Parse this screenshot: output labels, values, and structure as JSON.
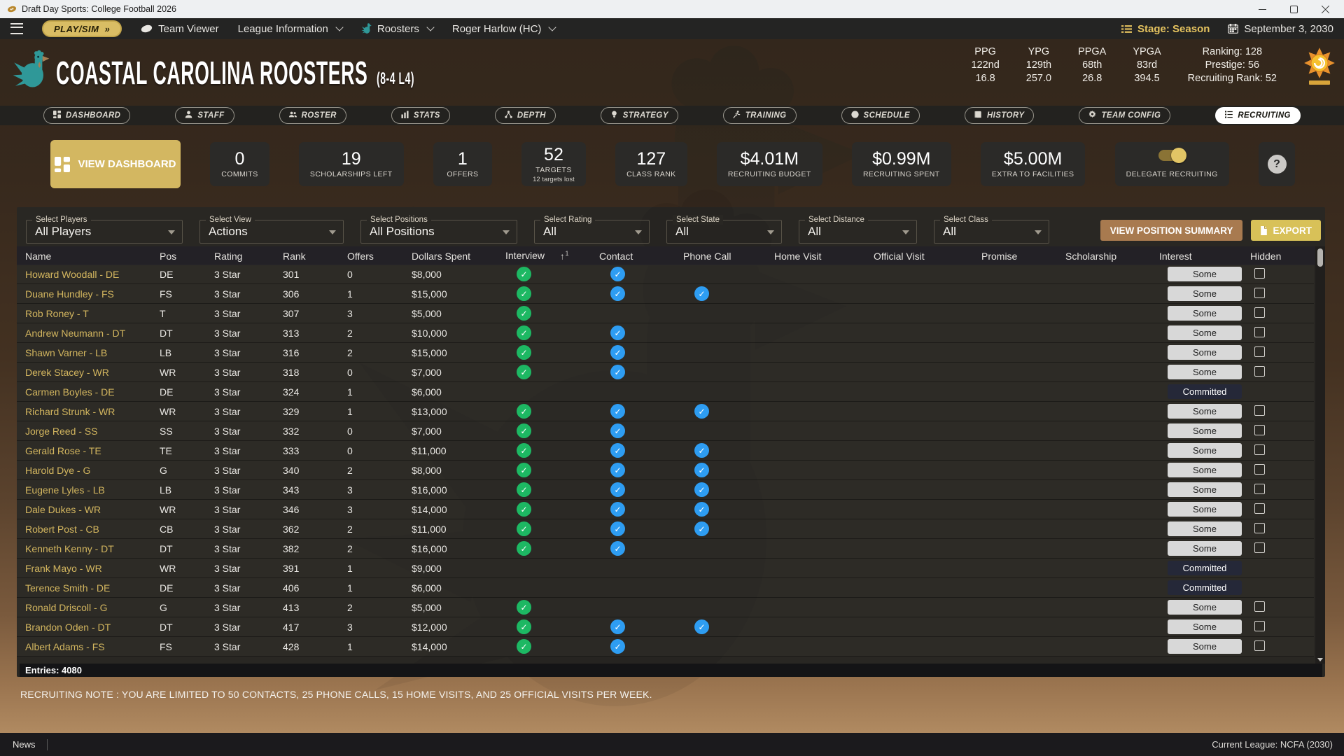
{
  "window": {
    "title": "Draft Day Sports: College Football 2026"
  },
  "navbar": {
    "play_sim": "PLAY/SIM",
    "play_sim_arrow": "»",
    "team_viewer": "Team Viewer",
    "league_information": "League Information",
    "roosters": "Roosters",
    "coach": "Roger Harlow (HC)",
    "stage": "Stage: Season",
    "date": "September 3, 2030"
  },
  "team": {
    "name": "COASTAL CAROLINA ROOSTERS",
    "record": "(8-4 L4)",
    "stats": [
      {
        "label": "PPG",
        "rank": "122nd",
        "value": "16.8"
      },
      {
        "label": "YPG",
        "rank": "129th",
        "value": "257.0"
      },
      {
        "label": "PPGA",
        "rank": "68th",
        "value": "26.8"
      },
      {
        "label": "YPGA",
        "rank": "83rd",
        "value": "394.5"
      }
    ],
    "summary": [
      "Ranking: 128",
      "Prestige: 56",
      "Recruiting Rank: 52"
    ]
  },
  "tabs": [
    {
      "label": "DASHBOARD",
      "icon": "dashboard-icon",
      "active": false
    },
    {
      "label": "STAFF",
      "icon": "staff-icon",
      "active": false
    },
    {
      "label": "ROSTER",
      "icon": "roster-icon",
      "active": false
    },
    {
      "label": "STATS",
      "icon": "stats-icon",
      "active": false
    },
    {
      "label": "DEPTH",
      "icon": "depth-icon",
      "active": false
    },
    {
      "label": "STRATEGY",
      "icon": "strategy-icon",
      "active": false
    },
    {
      "label": "TRAINING",
      "icon": "training-icon",
      "active": false
    },
    {
      "label": "SCHEDULE",
      "icon": "schedule-icon",
      "active": false
    },
    {
      "label": "HISTORY",
      "icon": "history-icon",
      "active": false
    },
    {
      "label": "TEAM CONFIG",
      "icon": "team-config-icon",
      "active": false
    },
    {
      "label": "RECRUITING",
      "icon": "recruiting-icon",
      "active": true
    }
  ],
  "cards": {
    "view_dashboard": "VIEW DASHBOARD",
    "stats": [
      {
        "value": "0",
        "label": "COMMITS"
      },
      {
        "value": "19",
        "label": "SCHOLARSHIPS LEFT"
      },
      {
        "value": "1",
        "label": "OFFERS"
      },
      {
        "value": "52",
        "label": "TARGETS",
        "sub": "12 targets lost"
      },
      {
        "value": "127",
        "label": "CLASS RANK"
      },
      {
        "value": "$4.01M",
        "label": "RECRUITING BUDGET"
      },
      {
        "value": "$0.99M",
        "label": "RECRUITING SPENT"
      },
      {
        "value": "$5.00M",
        "label": "EXTRA TO FACILITIES"
      }
    ],
    "delegate": {
      "label": "DELEGATE RECRUITING",
      "on": true
    },
    "help": "?"
  },
  "filters": [
    {
      "label": "Select Players",
      "value": "All Players"
    },
    {
      "label": "Select View",
      "value": "Actions"
    },
    {
      "label": "Select Positions",
      "value": "All Positions"
    },
    {
      "label": "Select Rating",
      "value": "All"
    },
    {
      "label": "Select State",
      "value": "All"
    },
    {
      "label": "Select Distance",
      "value": "All"
    },
    {
      "label": "Select Class",
      "value": "All"
    }
  ],
  "actions": {
    "position_summary": "VIEW POSITION SUMMARY",
    "export": "EXPORT"
  },
  "table": {
    "columns": [
      "Name",
      "Pos",
      "Rating",
      "Rank",
      "Offers",
      "Dollars Spent",
      "Interview",
      "Contact",
      "Phone Call",
      "Home Visit",
      "Official Visit",
      "Promise",
      "Scholarship",
      "Interest",
      "Hidden"
    ],
    "sort": {
      "column": "Interview",
      "direction": "asc",
      "order": "1"
    },
    "rows": [
      {
        "name": "Howard Woodall - DE",
        "pos": "DE",
        "rating": "3 Star",
        "rank": "301",
        "offers": "0",
        "dollars": "$8,000",
        "interview": true,
        "contact": true,
        "phone": false,
        "interest": "Some",
        "hidden_checkbox": true
      },
      {
        "name": "Duane Hundley - FS",
        "pos": "FS",
        "rating": "3 Star",
        "rank": "306",
        "offers": "1",
        "dollars": "$15,000",
        "interview": true,
        "contact": true,
        "phone": true,
        "interest": "Some",
        "hidden_checkbox": true
      },
      {
        "name": "Rob Roney - T",
        "pos": "T",
        "rating": "3 Star",
        "rank": "307",
        "offers": "3",
        "dollars": "$5,000",
        "interview": true,
        "contact": false,
        "phone": false,
        "interest": "Some",
        "hidden_checkbox": true
      },
      {
        "name": "Andrew Neumann - DT",
        "pos": "DT",
        "rating": "3 Star",
        "rank": "313",
        "offers": "2",
        "dollars": "$10,000",
        "interview": true,
        "contact": true,
        "phone": false,
        "interest": "Some",
        "hidden_checkbox": true
      },
      {
        "name": "Shawn Varner - LB",
        "pos": "LB",
        "rating": "3 Star",
        "rank": "316",
        "offers": "2",
        "dollars": "$15,000",
        "interview": true,
        "contact": true,
        "phone": false,
        "interest": "Some",
        "hidden_checkbox": true
      },
      {
        "name": "Derek Stacey - WR",
        "pos": "WR",
        "rating": "3 Star",
        "rank": "318",
        "offers": "0",
        "dollars": "$7,000",
        "interview": true,
        "contact": true,
        "phone": false,
        "interest": "Some",
        "hidden_checkbox": true
      },
      {
        "name": "Carmen Boyles - DE",
        "pos": "DE",
        "rating": "3 Star",
        "rank": "324",
        "offers": "1",
        "dollars": "$6,000",
        "interview": false,
        "contact": false,
        "phone": false,
        "interest": "Committed",
        "hidden_checkbox": false
      },
      {
        "name": "Richard Strunk - WR",
        "pos": "WR",
        "rating": "3 Star",
        "rank": "329",
        "offers": "1",
        "dollars": "$13,000",
        "interview": true,
        "contact": true,
        "phone": true,
        "interest": "Some",
        "hidden_checkbox": true
      },
      {
        "name": "Jorge Reed - SS",
        "pos": "SS",
        "rating": "3 Star",
        "rank": "332",
        "offers": "0",
        "dollars": "$7,000",
        "interview": true,
        "contact": true,
        "phone": false,
        "interest": "Some",
        "hidden_checkbox": true
      },
      {
        "name": "Gerald Rose - TE",
        "pos": "TE",
        "rating": "3 Star",
        "rank": "333",
        "offers": "0",
        "dollars": "$11,000",
        "interview": true,
        "contact": true,
        "phone": true,
        "interest": "Some",
        "hidden_checkbox": true
      },
      {
        "name": "Harold Dye - G",
        "pos": "G",
        "rating": "3 Star",
        "rank": "340",
        "offers": "2",
        "dollars": "$8,000",
        "interview": true,
        "contact": true,
        "phone": true,
        "interest": "Some",
        "hidden_checkbox": true
      },
      {
        "name": "Eugene Lyles - LB",
        "pos": "LB",
        "rating": "3 Star",
        "rank": "343",
        "offers": "3",
        "dollars": "$16,000",
        "interview": true,
        "contact": true,
        "phone": true,
        "interest": "Some",
        "hidden_checkbox": true
      },
      {
        "name": "Dale Dukes - WR",
        "pos": "WR",
        "rating": "3 Star",
        "rank": "346",
        "offers": "3",
        "dollars": "$14,000",
        "interview": true,
        "contact": true,
        "phone": true,
        "interest": "Some",
        "hidden_checkbox": true
      },
      {
        "name": "Robert Post - CB",
        "pos": "CB",
        "rating": "3 Star",
        "rank": "362",
        "offers": "2",
        "dollars": "$11,000",
        "interview": true,
        "contact": true,
        "phone": true,
        "interest": "Some",
        "hidden_checkbox": true
      },
      {
        "name": "Kenneth Kenny - DT",
        "pos": "DT",
        "rating": "3 Star",
        "rank": "382",
        "offers": "2",
        "dollars": "$16,000",
        "interview": true,
        "contact": true,
        "phone": false,
        "interest": "Some",
        "hidden_checkbox": true
      },
      {
        "name": "Frank Mayo - WR",
        "pos": "WR",
        "rating": "3 Star",
        "rank": "391",
        "offers": "1",
        "dollars": "$9,000",
        "interview": false,
        "contact": false,
        "phone": false,
        "interest": "Committed",
        "hidden_checkbox": false
      },
      {
        "name": "Terence Smith - DE",
        "pos": "DE",
        "rating": "3 Star",
        "rank": "406",
        "offers": "1",
        "dollars": "$6,000",
        "interview": false,
        "contact": false,
        "phone": false,
        "interest": "Committed",
        "hidden_checkbox": false
      },
      {
        "name": "Ronald Driscoll - G",
        "pos": "G",
        "rating": "3 Star",
        "rank": "413",
        "offers": "2",
        "dollars": "$5,000",
        "interview": true,
        "contact": false,
        "phone": false,
        "interest": "Some",
        "hidden_checkbox": true
      },
      {
        "name": "Brandon Oden - DT",
        "pos": "DT",
        "rating": "3 Star",
        "rank": "417",
        "offers": "3",
        "dollars": "$12,000",
        "interview": true,
        "contact": true,
        "phone": true,
        "interest": "Some",
        "hidden_checkbox": true
      }
    ],
    "partial_row": {
      "name": "Albert Adams - FS",
      "pos": "FS",
      "rating": "3 Star",
      "rank": "428",
      "offers": "1",
      "dollars": "$14,000",
      "interview": true,
      "contact": true,
      "phone": false,
      "interest": "Some",
      "hidden_checkbox": true
    },
    "entries": "Entries: 4080"
  },
  "note": "RECRUITING NOTE : YOU ARE LIMITED TO 50 CONTACTS, 25 PHONE CALLS, 15 HOME VISITS, AND 25 OFFICIAL VISITS PER WEEK.",
  "footer": {
    "news": "News",
    "league": "Current League: NCFA (2030)"
  },
  "colors": {
    "accent_gold": "#d9bd64",
    "team_teal": "#2f9898",
    "interview_green": "#1db863",
    "contact_blue": "#2e9df2",
    "name_gold": "#d3b65f"
  }
}
